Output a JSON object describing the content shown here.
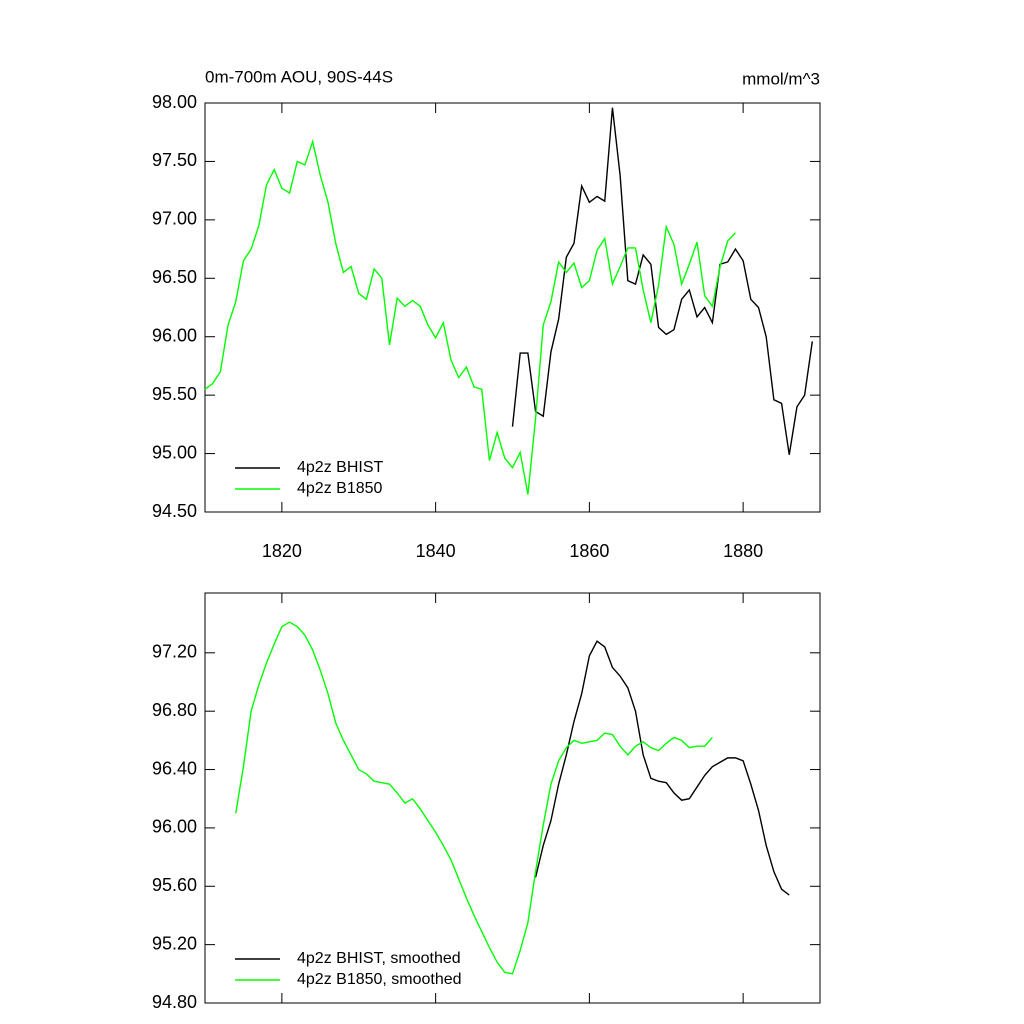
{
  "chart_data": [
    {
      "type": "line",
      "title": "0m-700m AOU, 90S-44S",
      "subtitle": "mmol/m^3",
      "x": [
        1810,
        1811,
        1812,
        1813,
        1814,
        1815,
        1816,
        1817,
        1818,
        1819,
        1820,
        1821,
        1822,
        1823,
        1824,
        1825,
        1826,
        1827,
        1828,
        1829,
        1830,
        1831,
        1832,
        1833,
        1834,
        1835,
        1836,
        1837,
        1838,
        1839,
        1840,
        1841,
        1842,
        1843,
        1844,
        1845,
        1846,
        1847,
        1848,
        1849,
        1850,
        1851,
        1852,
        1853,
        1854,
        1855,
        1856,
        1857,
        1858,
        1859,
        1860,
        1861,
        1862,
        1863,
        1864,
        1865,
        1866,
        1867,
        1868,
        1869,
        1870,
        1871,
        1872,
        1873,
        1874,
        1875,
        1876,
        1877,
        1878,
        1879,
        1880,
        1881,
        1882,
        1883,
        1884,
        1885,
        1886,
        1887,
        1888,
        1889
      ],
      "series": [
        {
          "name": "4p2z BHIST",
          "color": "#000000",
          "values": [
            null,
            null,
            null,
            null,
            null,
            null,
            null,
            null,
            null,
            null,
            null,
            null,
            null,
            null,
            null,
            null,
            null,
            null,
            null,
            null,
            null,
            null,
            null,
            null,
            null,
            null,
            null,
            null,
            null,
            null,
            null,
            null,
            null,
            null,
            null,
            null,
            null,
            null,
            null,
            null,
            95.23,
            95.86,
            95.86,
            95.36,
            95.32,
            95.87,
            96.15,
            96.68,
            96.8,
            97.29,
            97.15,
            97.2,
            97.16,
            97.96,
            97.38,
            96.48,
            96.45,
            96.7,
            96.62,
            96.08,
            96.02,
            96.06,
            96.32,
            96.4,
            96.17,
            96.25,
            96.12,
            96.62,
            96.64,
            96.75,
            96.65,
            96.32,
            96.25,
            96.0,
            95.46,
            95.43,
            94.99,
            95.4,
            95.5,
            95.96
          ]
        },
        {
          "name": "4p2z B1850",
          "color": "#00ff00",
          "values": [
            95.55,
            95.6,
            95.7,
            96.1,
            96.3,
            96.65,
            96.75,
            96.95,
            97.3,
            97.43,
            97.27,
            97.23,
            97.5,
            97.47,
            97.67,
            97.38,
            97.15,
            96.8,
            96.55,
            96.6,
            96.37,
            96.32,
            96.58,
            96.5,
            95.93,
            96.33,
            96.26,
            96.31,
            96.26,
            96.1,
            95.99,
            96.12,
            95.8,
            95.65,
            95.74,
            95.57,
            95.55,
            94.94,
            95.18,
            94.96,
            94.88,
            95.01,
            94.65,
            95.3,
            96.1,
            96.3,
            96.64,
            96.55,
            96.63,
            96.42,
            96.48,
            96.74,
            96.84,
            96.45,
            96.6,
            96.76,
            96.76,
            96.4,
            96.12,
            96.44,
            96.94,
            96.79,
            96.45,
            96.62,
            96.81,
            96.35,
            96.26,
            96.6,
            96.82,
            96.89,
            null,
            null,
            null,
            null,
            null,
            null,
            null,
            null,
            null,
            null
          ]
        }
      ],
      "xlim": [
        1810,
        1890
      ],
      "xticks": [
        1820,
        1840,
        1860,
        1880
      ],
      "ylim": [
        94.5,
        98.0
      ],
      "yticks": [
        {
          "value": 94.5,
          "label": "94.50"
        },
        {
          "value": 95.0,
          "label": "95.00"
        },
        {
          "value": 95.5,
          "label": "95.50"
        },
        {
          "value": 96.0,
          "label": "96.00"
        },
        {
          "value": 96.5,
          "label": "96.50"
        },
        {
          "value": 97.0,
          "label": "97.00"
        },
        {
          "value": 97.5,
          "label": "97.50"
        },
        {
          "value": 98.0,
          "label": "98.00"
        }
      ],
      "legend": "lower left"
    },
    {
      "type": "line",
      "x": [
        1814,
        1815,
        1816,
        1817,
        1818,
        1819,
        1820,
        1821,
        1822,
        1823,
        1824,
        1825,
        1826,
        1827,
        1828,
        1829,
        1830,
        1831,
        1832,
        1833,
        1834,
        1835,
        1836,
        1837,
        1838,
        1839,
        1840,
        1841,
        1842,
        1843,
        1844,
        1845,
        1846,
        1847,
        1848,
        1849,
        1850,
        1851,
        1852,
        1853,
        1854,
        1855,
        1856,
        1857,
        1858,
        1859,
        1860,
        1861,
        1862,
        1863,
        1864,
        1865,
        1866,
        1867,
        1868,
        1869,
        1870,
        1871,
        1872,
        1873,
        1874,
        1875,
        1876,
        1877,
        1878,
        1879,
        1880,
        1881,
        1882,
        1883,
        1884,
        1885,
        1886
      ],
      "series": [
        {
          "name": "4p2z BHIST, smoothed",
          "color": "#000000",
          "values": [
            null,
            null,
            null,
            null,
            null,
            null,
            null,
            null,
            null,
            null,
            null,
            null,
            null,
            null,
            null,
            null,
            null,
            null,
            null,
            null,
            null,
            null,
            null,
            null,
            null,
            null,
            null,
            null,
            null,
            null,
            null,
            null,
            null,
            null,
            null,
            null,
            null,
            null,
            null,
            95.66,
            95.88,
            96.05,
            96.3,
            96.5,
            96.73,
            96.92,
            97.18,
            97.28,
            97.24,
            97.1,
            97.04,
            96.96,
            96.8,
            96.5,
            96.34,
            96.32,
            96.31,
            96.24,
            96.19,
            96.2,
            96.28,
            96.36,
            96.42,
            96.45,
            96.48,
            96.48,
            96.46,
            96.3,
            96.12,
            95.88,
            95.7,
            95.58,
            95.54
          ]
        },
        {
          "name": "4p2z B1850, smoothed",
          "color": "#00ff00",
          "values": [
            96.1,
            96.42,
            96.8,
            96.98,
            97.13,
            97.26,
            97.38,
            97.41,
            97.38,
            97.32,
            97.22,
            97.08,
            96.92,
            96.72,
            96.6,
            96.5,
            96.4,
            96.37,
            96.32,
            96.31,
            96.3,
            96.24,
            96.17,
            96.2,
            96.13,
            96.05,
            95.97,
            95.88,
            95.78,
            95.65,
            95.52,
            95.4,
            95.29,
            95.18,
            95.08,
            95.01,
            95.0,
            95.16,
            95.35,
            95.7,
            96.02,
            96.3,
            96.46,
            96.55,
            96.6,
            96.58,
            96.59,
            96.6,
            96.65,
            96.64,
            96.56,
            96.5,
            96.56,
            96.59,
            96.55,
            96.53,
            96.58,
            96.62,
            96.6,
            96.55,
            96.56,
            96.56,
            96.62,
            null,
            null,
            null,
            null,
            null,
            null,
            null,
            null,
            null,
            null
          ]
        }
      ],
      "xlim": [
        1810,
        1890
      ],
      "ylim": [
        94.8,
        97.61
      ],
      "yticks": [
        {
          "value": 94.8,
          "label": "94.80"
        },
        {
          "value": 95.2,
          "label": "95.20"
        },
        {
          "value": 95.6,
          "label": "95.60"
        },
        {
          "value": 96.0,
          "label": "96.00"
        },
        {
          "value": 96.4,
          "label": "96.40"
        },
        {
          "value": 96.8,
          "label": "96.80"
        },
        {
          "value": 97.2,
          "label": "97.20"
        }
      ],
      "legend": "lower left"
    }
  ]
}
